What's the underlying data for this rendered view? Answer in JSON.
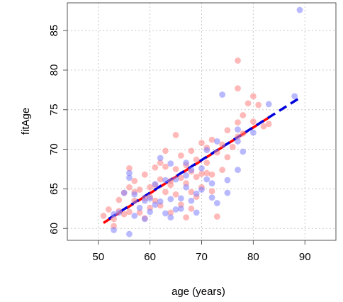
{
  "chart_data": {
    "type": "scatter",
    "title": "",
    "xlabel": "age (years)",
    "ylabel": "fitAge",
    "xlim": [
      44,
      96
    ],
    "ylim": [
      58.5,
      88.5
    ],
    "x_ticks": [
      "50",
      "60",
      "70",
      "80",
      "90"
    ],
    "y_ticks": [
      "60",
      "65",
      "70",
      "75",
      "80",
      "85"
    ],
    "grid": true,
    "legend": "none",
    "colors": {
      "red_points": "#ff7f7f",
      "blue_points": "#7f7fff",
      "red_line": "#ff0000",
      "blue_line": "#0000dd",
      "grid": "#c8c8c8",
      "frame": "#555555"
    },
    "series": [
      {
        "color": "red",
        "points": [
          [
            51,
            61.6
          ],
          [
            52,
            62.4
          ],
          [
            53,
            61.2
          ],
          [
            53,
            60.3
          ],
          [
            54,
            63.6
          ],
          [
            54,
            62.2
          ],
          [
            55,
            64.5
          ],
          [
            55,
            61.8
          ],
          [
            56,
            67.6
          ],
          [
            56,
            65.2
          ],
          [
            56,
            62.1
          ],
          [
            57,
            64.6
          ],
          [
            57,
            63.5
          ],
          [
            57,
            66.0
          ],
          [
            58,
            62.0
          ],
          [
            58,
            64.9
          ],
          [
            59,
            61.3
          ],
          [
            59,
            66.8
          ],
          [
            59,
            63.8
          ],
          [
            60,
            65.2
          ],
          [
            60,
            62.6
          ],
          [
            60,
            64.0
          ],
          [
            61,
            67.7
          ],
          [
            61,
            63.5
          ],
          [
            61,
            65.5
          ],
          [
            62,
            68.3
          ],
          [
            62,
            66.2
          ],
          [
            62,
            62.9
          ],
          [
            63,
            64.6
          ],
          [
            63,
            67.8
          ],
          [
            63,
            69.8
          ],
          [
            64,
            66.0
          ],
          [
            64,
            62.0
          ],
          [
            64,
            65.5
          ],
          [
            65,
            71.8
          ],
          [
            65,
            67.5
          ],
          [
            65,
            64.3
          ],
          [
            66,
            66.4
          ],
          [
            66,
            69.2
          ],
          [
            66,
            63.0
          ],
          [
            67,
            68.0
          ],
          [
            67,
            65.7
          ],
          [
            67,
            61.4
          ],
          [
            68,
            67.2
          ],
          [
            68,
            64.6
          ],
          [
            68,
            69.8
          ],
          [
            68,
            62.5
          ],
          [
            69,
            66.5
          ],
          [
            69,
            68.7
          ],
          [
            69,
            64.0
          ],
          [
            70,
            70.8
          ],
          [
            70,
            66.9
          ],
          [
            70,
            65.2
          ],
          [
            71,
            68.3
          ],
          [
            71,
            67.0
          ],
          [
            71,
            70.2
          ],
          [
            72,
            71.2
          ],
          [
            72,
            66.8
          ],
          [
            72,
            64.7
          ],
          [
            73,
            69.6
          ],
          [
            73,
            61.5
          ],
          [
            74,
            67.4
          ],
          [
            74,
            70.6
          ],
          [
            75,
            69.0
          ],
          [
            75,
            72.4
          ],
          [
            76,
            70.3
          ],
          [
            77,
            81.2
          ],
          [
            77,
            77.7
          ],
          [
            77,
            73.4
          ],
          [
            77,
            71.6
          ],
          [
            78,
            72.0
          ],
          [
            78,
            74.3
          ],
          [
            79,
            75.8
          ],
          [
            80,
            76.7
          ],
          [
            80,
            73.5
          ],
          [
            81,
            75.6
          ],
          [
            82,
            72.9
          ],
          [
            83,
            73.2
          ]
        ]
      },
      {
        "color": "blue",
        "points": [
          [
            53,
            59.8
          ],
          [
            53,
            61.8
          ],
          [
            54,
            62.0
          ],
          [
            55,
            64.5
          ],
          [
            56,
            59.3
          ],
          [
            56,
            67.0
          ],
          [
            56,
            66.4
          ],
          [
            57,
            64.3
          ],
          [
            57,
            61.6
          ],
          [
            58,
            62.6
          ],
          [
            59,
            61.2
          ],
          [
            59,
            63.5
          ],
          [
            60,
            63.8
          ],
          [
            60,
            62.1
          ],
          [
            61,
            63.0
          ],
          [
            61,
            65.6
          ],
          [
            62,
            68.9
          ],
          [
            62,
            63.4
          ],
          [
            63,
            61.9
          ],
          [
            63,
            66.1
          ],
          [
            64,
            63.7
          ],
          [
            64,
            61.4
          ],
          [
            64,
            68.2
          ],
          [
            65,
            62.4
          ],
          [
            65,
            66.2
          ],
          [
            66,
            63.8
          ],
          [
            66,
            62.5
          ],
          [
            67,
            68.3
          ],
          [
            67,
            65.2
          ],
          [
            67,
            66.7
          ],
          [
            68,
            63.5
          ],
          [
            68,
            67.4
          ],
          [
            69,
            64.4
          ],
          [
            69,
            62.0
          ],
          [
            70,
            67.6
          ],
          [
            70,
            64.9
          ],
          [
            71,
            66.2
          ],
          [
            71,
            69.9
          ],
          [
            72,
            63.9
          ],
          [
            72,
            65.7
          ],
          [
            73,
            71.0
          ],
          [
            73,
            63.2
          ],
          [
            74,
            76.9
          ],
          [
            75,
            64.5
          ],
          [
            75,
            66.1
          ],
          [
            77,
            72.5
          ],
          [
            77,
            67.4
          ],
          [
            77,
            71.0
          ],
          [
            78,
            69.7
          ],
          [
            80,
            72.1
          ],
          [
            83,
            75.7
          ],
          [
            88,
            76.7
          ],
          [
            89,
            87.6
          ]
        ]
      }
    ],
    "fit_lines": [
      {
        "color": "red",
        "style": "dashed",
        "x": [
          51,
          83
        ],
        "y": [
          60.7,
          74.0
        ]
      },
      {
        "color": "blue",
        "style": "dashed",
        "x": [
          52,
          89
        ],
        "y": [
          61.2,
          76.5
        ]
      }
    ]
  }
}
